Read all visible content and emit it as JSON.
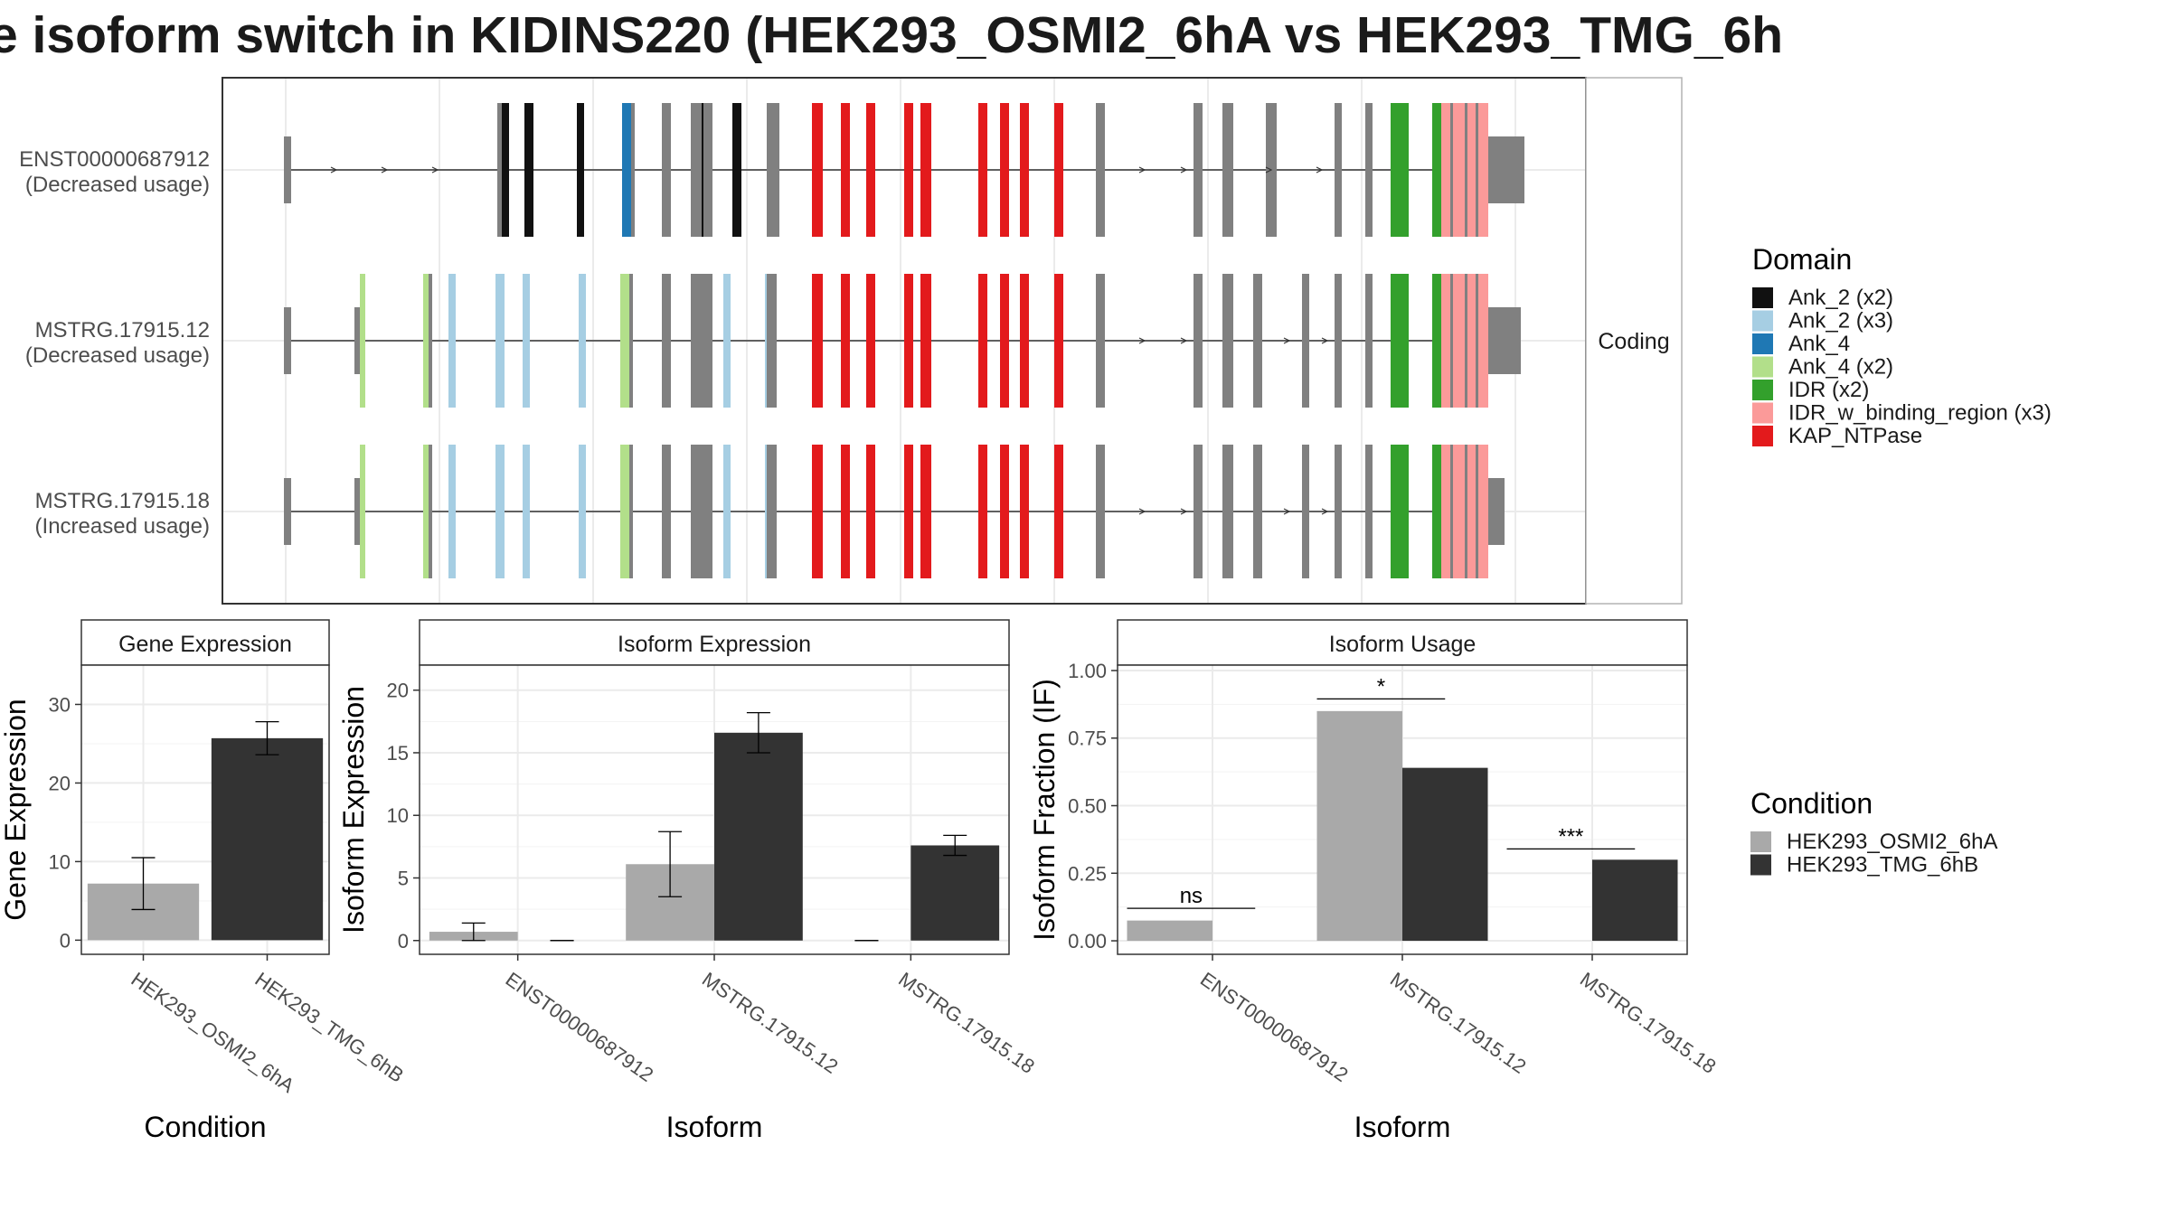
{
  "title": "e isoform switch in KIDINS220 (HEK293_OSMI2_6hA vs HEK293_TMG_6h",
  "structure_panel": {
    "strip_label": "Coding",
    "isoforms": [
      {
        "name": "ENST00000687912",
        "note": "(Decreased usage)"
      },
      {
        "name": "MSTRG.17915.12",
        "note": "(Decreased usage)"
      },
      {
        "name": "MSTRG.17915.18",
        "note": "(Increased usage)"
      }
    ]
  },
  "domain_legend": {
    "title": "Domain",
    "items": [
      {
        "label": "Ank_2 (x2)",
        "color": "#111111"
      },
      {
        "label": "Ank_2 (x3)",
        "color": "#a6cee3"
      },
      {
        "label": "Ank_4",
        "color": "#1f78b4"
      },
      {
        "label": "Ank_4 (x2)",
        "color": "#b2df8a"
      },
      {
        "label": "IDR (x2)",
        "color": "#33a02c"
      },
      {
        "label": "IDR_w_binding_region (x3)",
        "color": "#fb9a99"
      },
      {
        "label": "KAP_NTPase",
        "color": "#e31a1c"
      }
    ]
  },
  "condition_legend": {
    "title": "Condition",
    "items": [
      {
        "label": "HEK293_OSMI2_6hA",
        "color": "#a9a9a9"
      },
      {
        "label": "HEK293_TMG_6hB",
        "color": "#333333"
      }
    ]
  },
  "chart_data": [
    {
      "type": "bar",
      "panel_title": "Gene Expression",
      "xlabel": "Condition",
      "ylabel": "Gene Expression",
      "categories": [
        "HEK293_OSMI2_6hA",
        "HEK293_TMG_6hB"
      ],
      "values": [
        7.2,
        25.7
      ],
      "errors": [
        3.3,
        2.1
      ],
      "colors": [
        "#a9a9a9",
        "#333333"
      ],
      "ylim": [
        -1.8,
        35
      ],
      "yticks": [
        0,
        10,
        20,
        30
      ],
      "ytick_labels": [
        "0",
        "10",
        "20",
        "30"
      ]
    },
    {
      "type": "bar",
      "panel_title": "Isoform Expression",
      "xlabel": "Isoform",
      "ylabel": "Isoform Expression",
      "categories": [
        "ENST00000687912",
        "MSTRG.17915.12",
        "MSTRG.17915.18"
      ],
      "series": [
        {
          "name": "HEK293_OSMI2_6hA",
          "values": [
            0.7,
            6.1,
            0.0
          ],
          "errors": [
            0.7,
            2.6,
            0.0
          ]
        },
        {
          "name": "HEK293_TMG_6hB",
          "values": [
            0.0,
            16.6,
            7.6
          ],
          "errors": [
            0.0,
            1.6,
            0.8
          ]
        }
      ],
      "ylim": [
        -1.1,
        22
      ],
      "yticks": [
        0,
        5,
        10,
        15,
        20
      ],
      "ytick_labels": [
        "0",
        "5",
        "10",
        "15",
        "20"
      ]
    },
    {
      "type": "bar",
      "panel_title": "Isoform Usage",
      "xlabel": "Isoform",
      "ylabel": "Isoform Fraction (IF)",
      "categories": [
        "ENST00000687912",
        "MSTRG.17915.12",
        "MSTRG.17915.18"
      ],
      "series": [
        {
          "name": "HEK293_OSMI2_6hA",
          "values": [
            0.075,
            0.85,
            0.0
          ]
        },
        {
          "name": "HEK293_TMG_6hB",
          "values": [
            0.0,
            0.64,
            0.3
          ]
        }
      ],
      "annotations": [
        {
          "category": "ENST00000687912",
          "label": "ns",
          "y": 0.12
        },
        {
          "category": "MSTRG.17915.12",
          "label": "*",
          "y": 0.895
        },
        {
          "category": "MSTRG.17915.18",
          "label": "***",
          "y": 0.34
        }
      ],
      "ylim": [
        -0.05,
        1.02
      ],
      "yticks": [
        0,
        0.25,
        0.5,
        0.75,
        1.0
      ],
      "ytick_labels": [
        "0.00",
        "0.25",
        "0.50",
        "0.75",
        "1.00"
      ]
    }
  ]
}
